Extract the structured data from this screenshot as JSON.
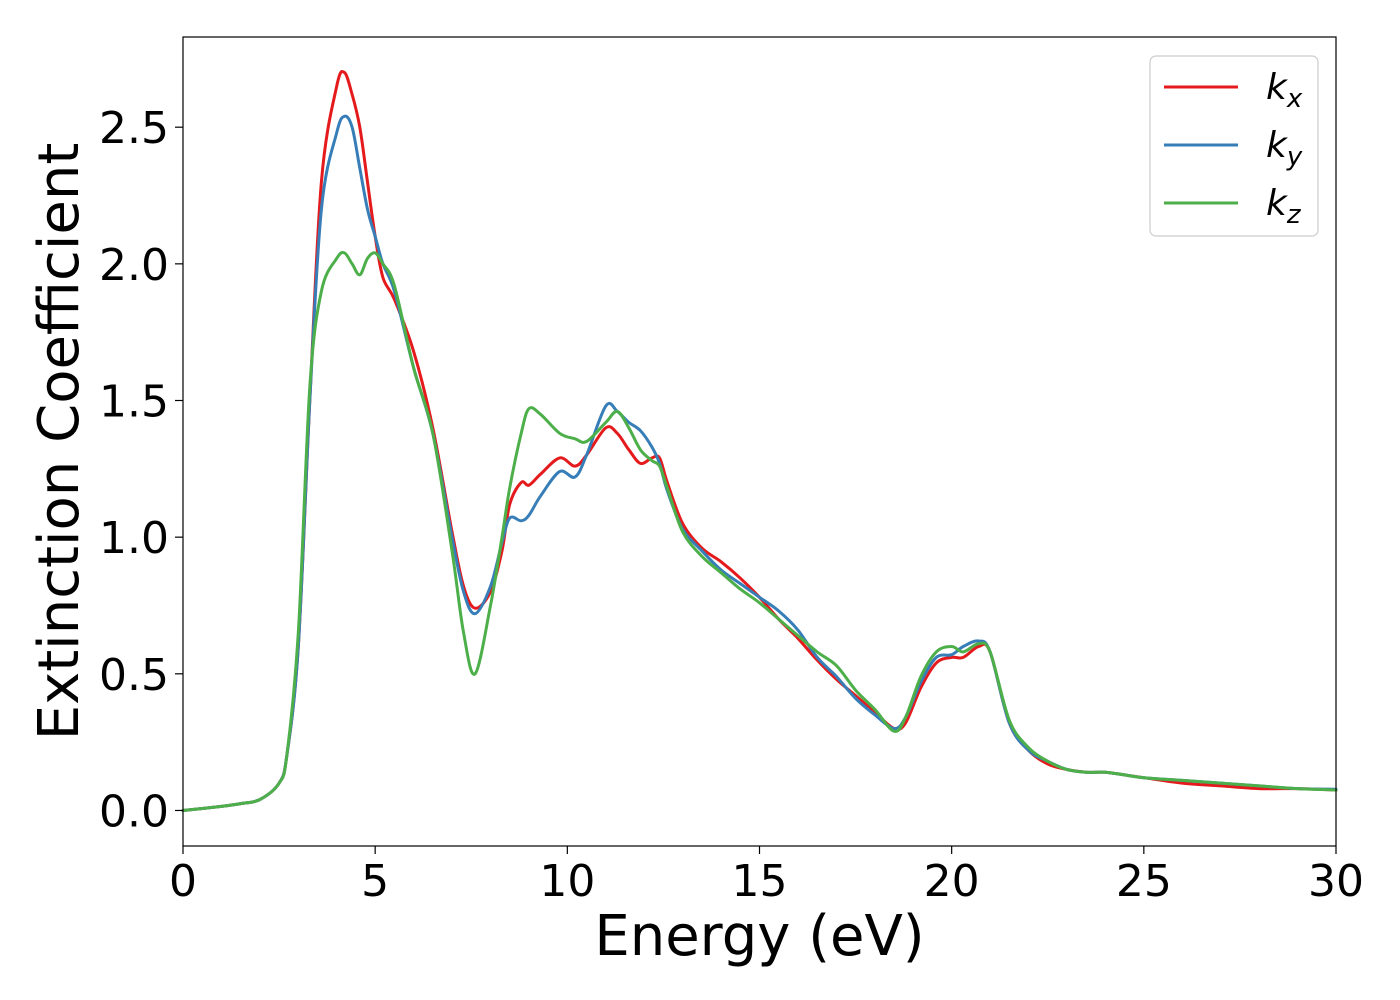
{
  "chart_data": {
    "type": "line",
    "xlabel": "Energy (eV)",
    "ylabel": "Extinction Coefficient",
    "xlim": [
      0,
      30
    ],
    "ylim": [
      -0.13,
      2.83
    ],
    "xticks": [
      0,
      5,
      10,
      15,
      20,
      25,
      30
    ],
    "yticks": [
      0.0,
      0.5,
      1.0,
      1.5,
      2.0,
      2.5
    ],
    "xtick_labels": [
      "0",
      "5",
      "10",
      "15",
      "20",
      "25",
      "30"
    ],
    "ytick_labels": [
      "0.0",
      "0.5",
      "1.0",
      "1.5",
      "2.0",
      "2.5"
    ],
    "grid": false,
    "legend_position": "top-right",
    "series": [
      {
        "name": "k_x",
        "base": "k",
        "sub": "x",
        "color": "#e41a1c",
        "x": [
          0,
          1,
          1.5,
          2,
          2.5,
          2.7,
          3,
          3.3,
          3.6,
          4,
          4.2,
          4.4,
          4.6,
          4.8,
          5,
          5.2,
          5.5,
          6,
          6.5,
          7,
          7.3,
          7.6,
          8,
          8.3,
          8.5,
          8.8,
          9,
          9.3,
          9.8,
          10.2,
          10.5,
          11,
          11.3,
          11.6,
          11.9,
          12.2,
          12.4,
          12.6,
          13,
          13.5,
          14,
          14.5,
          15,
          15.5,
          16,
          16.5,
          17,
          17.5,
          18,
          18.5,
          18.8,
          19.2,
          19.6,
          20,
          20.3,
          20.7,
          21,
          21.5,
          22,
          22.5,
          23,
          23.5,
          24,
          24.5,
          25,
          26,
          27,
          28,
          29,
          30
        ],
        "y": [
          0,
          0.015,
          0.025,
          0.04,
          0.1,
          0.2,
          0.6,
          1.5,
          2.3,
          2.65,
          2.7,
          2.62,
          2.5,
          2.3,
          2.1,
          1.95,
          1.87,
          1.68,
          1.4,
          1.02,
          0.82,
          0.74,
          0.8,
          0.95,
          1.12,
          1.2,
          1.19,
          1.23,
          1.29,
          1.26,
          1.3,
          1.4,
          1.38,
          1.32,
          1.27,
          1.29,
          1.29,
          1.2,
          1.05,
          0.96,
          0.91,
          0.85,
          0.78,
          0.7,
          0.63,
          0.55,
          0.48,
          0.42,
          0.36,
          0.3,
          0.32,
          0.45,
          0.54,
          0.56,
          0.56,
          0.6,
          0.58,
          0.32,
          0.22,
          0.17,
          0.15,
          0.14,
          0.14,
          0.13,
          0.12,
          0.1,
          0.09,
          0.08,
          0.08,
          0.075
        ]
      },
      {
        "name": "k_y",
        "base": "k",
        "sub": "y",
        "color": "#377eb8",
        "x": [
          0,
          1,
          1.5,
          2,
          2.5,
          2.7,
          3,
          3.3,
          3.6,
          4,
          4.2,
          4.4,
          4.6,
          4.8,
          5,
          5.2,
          5.5,
          6,
          6.5,
          7,
          7.3,
          7.6,
          8,
          8.3,
          8.5,
          8.8,
          9,
          9.3,
          9.8,
          10.2,
          10.5,
          11,
          11.3,
          11.6,
          11.9,
          12.2,
          12.4,
          12.6,
          13,
          13.5,
          14,
          14.5,
          15,
          15.5,
          16,
          16.5,
          17,
          17.5,
          18,
          18.5,
          18.8,
          19.2,
          19.6,
          20,
          20.3,
          20.7,
          21,
          21.5,
          22,
          22.5,
          23,
          23.5,
          24,
          24.5,
          25,
          26,
          27,
          28,
          29,
          30
        ],
        "y": [
          0,
          0.015,
          0.025,
          0.04,
          0.1,
          0.2,
          0.6,
          1.5,
          2.2,
          2.48,
          2.54,
          2.5,
          2.35,
          2.2,
          2.1,
          2.0,
          1.9,
          1.62,
          1.38,
          1.0,
          0.8,
          0.72,
          0.82,
          0.98,
          1.07,
          1.06,
          1.08,
          1.15,
          1.24,
          1.22,
          1.3,
          1.48,
          1.46,
          1.42,
          1.39,
          1.33,
          1.27,
          1.17,
          1.03,
          0.95,
          0.88,
          0.83,
          0.78,
          0.73,
          0.66,
          0.56,
          0.49,
          0.41,
          0.35,
          0.3,
          0.34,
          0.47,
          0.56,
          0.57,
          0.6,
          0.62,
          0.58,
          0.32,
          0.22,
          0.18,
          0.15,
          0.14,
          0.14,
          0.13,
          0.12,
          0.11,
          0.1,
          0.09,
          0.08,
          0.078
        ]
      },
      {
        "name": "k_z",
        "base": "k",
        "sub": "z",
        "color": "#4daf4a",
        "x": [
          0,
          1,
          1.5,
          2,
          2.5,
          2.7,
          3,
          3.3,
          3.6,
          4,
          4.2,
          4.4,
          4.6,
          4.8,
          5,
          5.2,
          5.5,
          6,
          6.5,
          7,
          7.3,
          7.6,
          8,
          8.3,
          8.5,
          8.8,
          9,
          9.3,
          9.8,
          10.2,
          10.5,
          11,
          11.3,
          11.6,
          11.9,
          12.2,
          12.4,
          12.6,
          13,
          13.5,
          14,
          14.5,
          15,
          15.5,
          16,
          16.5,
          17,
          17.5,
          18,
          18.5,
          18.8,
          19.2,
          19.6,
          20,
          20.3,
          20.7,
          21,
          21.5,
          22,
          22.5,
          23,
          23.5,
          24,
          24.5,
          25,
          26,
          27,
          28,
          29,
          30
        ],
        "y": [
          0,
          0.015,
          0.025,
          0.04,
          0.1,
          0.2,
          0.65,
          1.55,
          1.9,
          2.02,
          2.04,
          2.0,
          1.96,
          2.02,
          2.04,
          2.0,
          1.92,
          1.62,
          1.38,
          0.95,
          0.65,
          0.5,
          0.75,
          1.0,
          1.18,
          1.38,
          1.47,
          1.45,
          1.38,
          1.36,
          1.35,
          1.42,
          1.46,
          1.4,
          1.32,
          1.28,
          1.26,
          1.18,
          1.02,
          0.93,
          0.87,
          0.81,
          0.76,
          0.7,
          0.64,
          0.58,
          0.53,
          0.44,
          0.37,
          0.29,
          0.34,
          0.49,
          0.58,
          0.6,
          0.58,
          0.61,
          0.58,
          0.33,
          0.23,
          0.18,
          0.15,
          0.14,
          0.14,
          0.13,
          0.12,
          0.11,
          0.1,
          0.09,
          0.08,
          0.075
        ]
      }
    ]
  }
}
